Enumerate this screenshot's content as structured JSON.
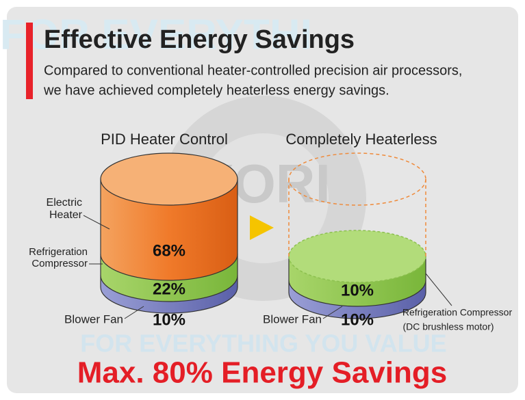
{
  "watermark": {
    "top": "FOR EVERYTHI",
    "logo": "YORI",
    "bottom": "FOR EVERYTHING YOU VALUE"
  },
  "header": {
    "title": "Effective Energy Savings",
    "subtitle_lines": [
      "Compared to conventional heater-controlled precision air processors,",
      "we have achieved completely heaterless energy savings."
    ]
  },
  "left": {
    "title": "PID Heater Control",
    "heater_label": [
      "Electric",
      "Heater"
    ],
    "compressor_label": [
      "Refrigeration",
      "Compressor"
    ],
    "fan_label": "Blower Fan",
    "heater_share": "68%",
    "compressor_share": "22%",
    "fan_share": "10%"
  },
  "right": {
    "title": "Completely Heaterless",
    "compressor_share": "10%",
    "fan_label": "Blower Fan",
    "fan_share": "10%",
    "compressor_label": [
      "Refrigeration Compressor",
      "(DC brushless motor)"
    ]
  },
  "footer": "Max. 80% Energy Savings"
}
